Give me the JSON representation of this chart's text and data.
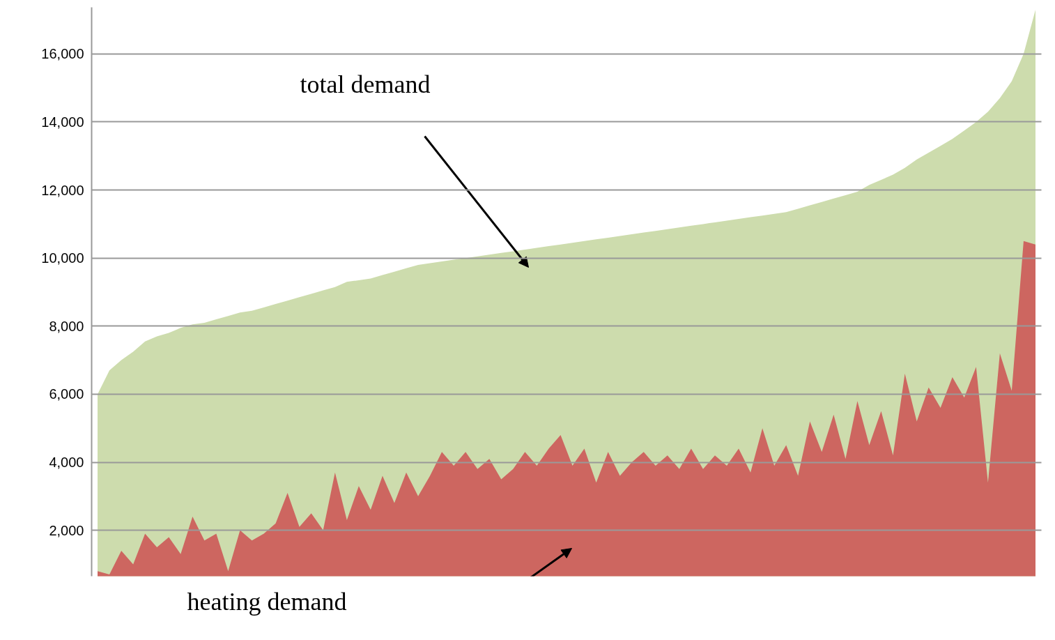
{
  "chart_data": {
    "type": "area",
    "categories": [
      null,
      null,
      null,
      null,
      null,
      null,
      null,
      null,
      null,
      null,
      null,
      null,
      null,
      null,
      null,
      null,
      null,
      null,
      null,
      null,
      null,
      null,
      null,
      null,
      null,
      null,
      null,
      null,
      null,
      null,
      null,
      null,
      null,
      null,
      null,
      null,
      null,
      null,
      null,
      null,
      null,
      null,
      null,
      null,
      null,
      null,
      null,
      null,
      null,
      null,
      null,
      null,
      null,
      null,
      null,
      null,
      null,
      null,
      null,
      null,
      null,
      null,
      null,
      null,
      null,
      null,
      null,
      null,
      null,
      null,
      null,
      null,
      null,
      null,
      null,
      null,
      null,
      null,
      null,
      null
    ],
    "series": [
      {
        "color": "#cddcad",
        "values": [
          6000,
          6700,
          7000,
          7250,
          7550,
          7700,
          7800,
          7950,
          8050,
          8100,
          8200,
          8300,
          8400,
          8450,
          8550,
          8650,
          8750,
          8850,
          8950,
          9050,
          9150,
          9300,
          9350,
          9400,
          9500,
          9600,
          9700,
          9800,
          9850,
          9900,
          9950,
          10000,
          10050,
          10100,
          10150,
          10200,
          10250,
          10300,
          10350,
          10400,
          10450,
          10500,
          10550,
          10600,
          10650,
          10700,
          10750,
          10800,
          10850,
          10900,
          10950,
          11000,
          11050,
          11100,
          11150,
          11200,
          11250,
          11300,
          11350,
          11450,
          11550,
          11650,
          11750,
          11850,
          11950,
          12150,
          12300,
          12450,
          12650,
          12900,
          13100,
          13300,
          13500,
          13750,
          14000,
          14300,
          14700,
          15200,
          16000,
          17300
        ]
      },
      {
        "color": "#cd6660",
        "values": [
          800,
          700,
          1400,
          1000,
          1900,
          1500,
          1800,
          1300,
          2400,
          1700,
          1900,
          800,
          2000,
          1700,
          1900,
          2200,
          3100,
          2100,
          2500,
          2000,
          3700,
          2300,
          3300,
          2600,
          3600,
          2800,
          3700,
          3000,
          3600,
          4300,
          3900,
          4300,
          3800,
          4100,
          3500,
          3800,
          4300,
          3900,
          4400,
          4800,
          3900,
          4400,
          3400,
          4300,
          3600,
          4000,
          4300,
          3900,
          4200,
          3800,
          4400,
          3800,
          4200,
          3900,
          4400,
          3700,
          5000,
          3900,
          4500,
          3600,
          5200,
          4300,
          5400,
          4100,
          5800,
          4500,
          5500,
          4200,
          6600,
          5200,
          6200,
          5600,
          6500,
          5900,
          6800,
          3400,
          7200,
          6100,
          10500,
          10400
        ]
      }
    ],
    "ylim": [
      650,
      17370
    ],
    "yticks": [
      {
        "value": 2000,
        "label": "2,000"
      },
      {
        "value": 4000,
        "label": "4,000"
      },
      {
        "value": 6000,
        "label": "6,000"
      },
      {
        "value": 8000,
        "label": "8,000"
      },
      {
        "value": 10000,
        "label": "10,000"
      },
      {
        "value": 12000,
        "label": "12,000"
      },
      {
        "value": 14000,
        "label": "14,000"
      },
      {
        "value": 16000,
        "label": "16,000"
      }
    ],
    "grid": "y",
    "tick_labels": "y",
    "annotations": [
      "total demand",
      "heating demand"
    ]
  }
}
